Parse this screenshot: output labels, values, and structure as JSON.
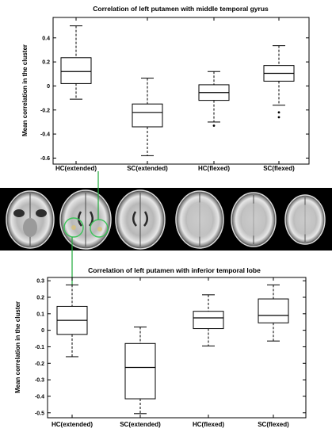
{
  "colors": {
    "connector": "#1faa3a",
    "roi_highlight": "#3dc45a",
    "strip_bg": "#000000"
  },
  "chart_data": [
    {
      "type": "box",
      "title": "Correlation of left putamen with middle temporal gyrus",
      "ylabel": "Mean correlation in the cluster",
      "ylim": [
        -0.65,
        0.57
      ],
      "yticks": [
        0.4,
        0.2,
        0,
        -0.2,
        -0.4,
        -0.6
      ],
      "categories": [
        "HC(extended)",
        "SC(extended)",
        "HC(flexed)",
        "SC(flexed)"
      ],
      "boxes": [
        {
          "min": -0.11,
          "q1": 0.02,
          "median": 0.12,
          "q3": 0.235,
          "max": 0.5,
          "outliers": []
        },
        {
          "min": -0.58,
          "q1": -0.34,
          "median": -0.22,
          "q3": -0.15,
          "max": 0.065,
          "outliers": []
        },
        {
          "min": -0.3,
          "q1": -0.12,
          "median": -0.055,
          "q3": 0.01,
          "max": 0.12,
          "outliers": [
            -0.33
          ]
        },
        {
          "min": -0.16,
          "q1": 0.04,
          "median": 0.105,
          "q3": 0.17,
          "max": 0.335,
          "outliers": [
            -0.22,
            -0.26
          ]
        }
      ]
    },
    {
      "type": "box",
      "title": "Correlation of left putamen with inferior temporal lobe",
      "ylabel": "Mean correlation in the cluster",
      "ylim": [
        -0.53,
        0.32
      ],
      "yticks": [
        0.3,
        0.2,
        0.1,
        0,
        -0.1,
        -0.2,
        -0.3,
        -0.4,
        -0.5
      ],
      "categories": [
        "HC(extended)",
        "SC(extended)",
        "HC(flexed)",
        "SC(flexed)"
      ],
      "boxes": [
        {
          "min": -0.16,
          "q1": -0.025,
          "median": 0.06,
          "q3": 0.145,
          "max": 0.275,
          "outliers": []
        },
        {
          "min": -0.505,
          "q1": -0.415,
          "median": -0.225,
          "q3": -0.08,
          "max": 0.02,
          "outliers": []
        },
        {
          "min": -0.095,
          "q1": 0.01,
          "median": 0.075,
          "q3": 0.115,
          "max": 0.215,
          "outliers": []
        },
        {
          "min": -0.065,
          "q1": 0.045,
          "median": 0.09,
          "q3": 0.19,
          "max": 0.275,
          "outliers": []
        }
      ]
    }
  ]
}
